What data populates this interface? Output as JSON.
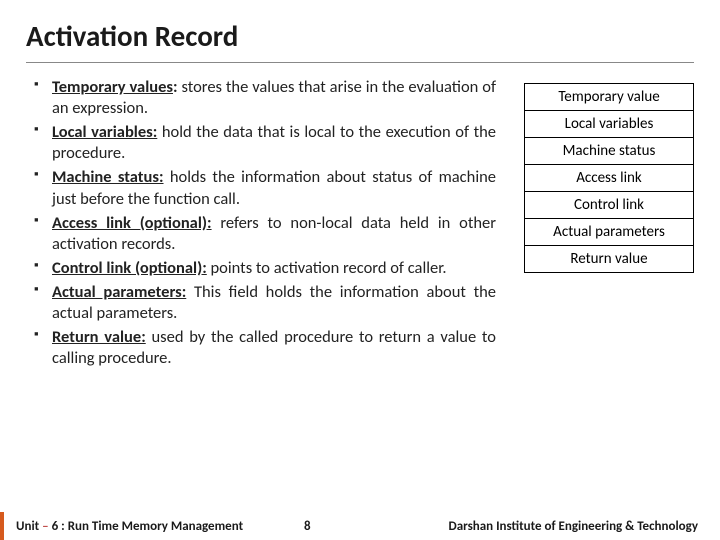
{
  "title": "Activation Record",
  "bullets": [
    {
      "term": "Temporary values:",
      "underline": "Temporary values",
      "text": " stores the values that arise in the evaluation of an expression."
    },
    {
      "term": "Local variables:",
      "underline": "Local variables:",
      "text": " hold the data that is local to the execution of the procedure."
    },
    {
      "term": "Machine status:",
      "underline": "Machine status:",
      "text": " holds the information about status of machine just before the function call."
    },
    {
      "term": "Access link (optional):",
      "underline": "Access link (optional):",
      "text": " refers to non-local data held in other activation records."
    },
    {
      "term": "Control link (optional):",
      "underline": "Control link (optional):",
      "text": " points to activation record of caller."
    },
    {
      "term": "Actual parameters:",
      "underline": "Actual parameters:",
      "text": " This field holds the information about the actual parameters."
    },
    {
      "term": "Return value:",
      "underline": "Return value:",
      "text": " used by the called procedure to return a value to calling procedure."
    }
  ],
  "diagram": {
    "cells": [
      "Temporary value",
      "Local variables",
      "Machine status",
      "Access link",
      "Control link",
      "Actual parameters",
      "Return value"
    ]
  },
  "footer": {
    "unit": "Unit",
    "dash": "–",
    "unit_rest": "6  : Run Time Memory Management",
    "page": "8",
    "institute": "Darshan Institute of Engineering & Technology"
  }
}
